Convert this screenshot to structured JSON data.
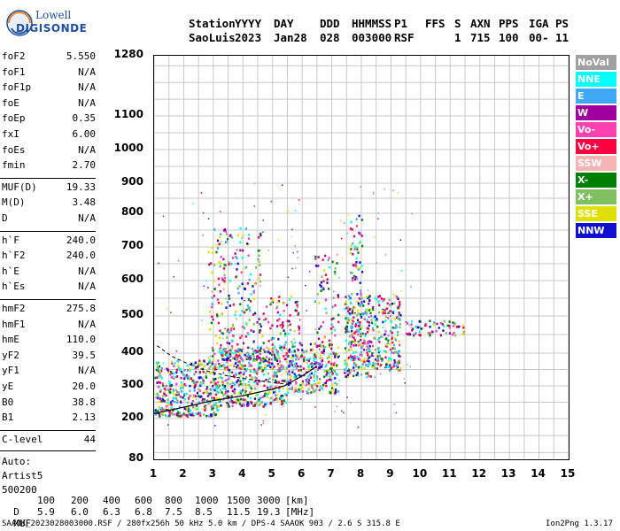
{
  "logo": {
    "line1": "Lowell",
    "line2": "DIGISONDE"
  },
  "header": {
    "labels": [
      "Station",
      "YYYY",
      "DAY",
      "DDD",
      "HHMMSS",
      "P1",
      "FFS",
      "S",
      "AXN",
      "PPS",
      "IGA",
      "PS"
    ],
    "values": [
      "SaoLuis",
      "2023",
      "Jan28",
      "028",
      "003000",
      "RSF",
      "",
      "1",
      "715",
      "100",
      "00-",
      "11"
    ]
  },
  "params": {
    "group1": [
      {
        "label": "foF2",
        "value": "5.550"
      },
      {
        "label": "foF1",
        "value": "N/A"
      },
      {
        "label": "foF1p",
        "value": "N/A"
      },
      {
        "label": "foE",
        "value": "N/A"
      },
      {
        "label": "foEp",
        "value": "0.35"
      },
      {
        "label": "fxI",
        "value": "6.00"
      },
      {
        "label": "foEs",
        "value": "N/A"
      },
      {
        "label": "fmin",
        "value": "2.70"
      }
    ],
    "group2": [
      {
        "label": "MUF(D)",
        "value": "19.33"
      },
      {
        "label": "M(D)",
        "value": "3.48"
      },
      {
        "label": "D",
        "value": "N/A"
      }
    ],
    "group3": [
      {
        "label": "h`F",
        "value": "240.0"
      },
      {
        "label": "h`F2",
        "value": "240.0"
      },
      {
        "label": "h`E",
        "value": "N/A"
      },
      {
        "label": "h`Es",
        "value": "N/A"
      }
    ],
    "group4": [
      {
        "label": "hmF2",
        "value": "275.8"
      },
      {
        "label": "hmF1",
        "value": "N/A"
      },
      {
        "label": "hmE",
        "value": "110.0"
      },
      {
        "label": "yF2",
        "value": "39.5"
      },
      {
        "label": "yF1",
        "value": "N/A"
      },
      {
        "label": "yE",
        "value": "20.0"
      },
      {
        "label": "B0",
        "value": "38.8"
      },
      {
        "label": "B1",
        "value": "2.13"
      }
    ],
    "group5": [
      {
        "label": "C-level",
        "value": "44"
      }
    ],
    "auto_label": "Auto:",
    "artist": "Artist5",
    "code": "500200"
  },
  "legend": [
    {
      "label": "NoVal",
      "color": "#a0a0a0"
    },
    {
      "label": "NNE",
      "color": "#00ffff"
    },
    {
      "label": "E",
      "color": "#3fa9f5"
    },
    {
      "label": "W",
      "color": "#a000a0"
    },
    {
      "label": "Vo-",
      "color": "#ff40b0"
    },
    {
      "label": "Vo+",
      "color": "#ff0040"
    },
    {
      "label": "SSW",
      "color": "#f4b4b4"
    },
    {
      "label": "X-",
      "color": "#008000"
    },
    {
      "label": "X+",
      "color": "#80c060"
    },
    {
      "label": "SSE",
      "color": "#e0e000"
    },
    {
      "label": "NNW",
      "color": "#1010d0"
    }
  ],
  "chart_data": {
    "type": "scatter",
    "xlabel": "",
    "ylabel": "",
    "xlim": [
      1,
      15
    ],
    "ylim": [
      80,
      1280
    ],
    "x_ticks": [
      "1",
      "2",
      "3",
      "4",
      "5",
      "6",
      "7",
      "8",
      "9",
      "10",
      "11",
      "12",
      "13",
      "14",
      "15"
    ],
    "y_ticks": [
      {
        "value": 1280,
        "label": "1280"
      },
      {
        "value": 1100,
        "label": "1100"
      },
      {
        "value": 1000,
        "label": "1000"
      },
      {
        "value": 900,
        "label": "900"
      },
      {
        "value": 800,
        "label": "800"
      },
      {
        "value": 700,
        "label": "700"
      },
      {
        "value": 600,
        "label": "600"
      },
      {
        "value": 500,
        "label": "500"
      },
      {
        "value": 400,
        "label": "400"
      },
      {
        "value": 300,
        "label": "300"
      },
      {
        "value": 200,
        "label": "200"
      },
      {
        "value": 80,
        "label": "80"
      }
    ],
    "grid": true,
    "trace_lower": [
      [
        1.0,
        215
      ],
      [
        2.0,
        235
      ],
      [
        3.0,
        255
      ],
      [
        4.0,
        270
      ],
      [
        5.0,
        290
      ],
      [
        5.4,
        300
      ],
      [
        6.0,
        330
      ],
      [
        6.5,
        360
      ]
    ],
    "trace_upper": [
      [
        1.1,
        420
      ],
      [
        1.6,
        390
      ],
      [
        2.2,
        365
      ],
      [
        2.8,
        345
      ],
      [
        3.5,
        330
      ],
      [
        4.2,
        320
      ],
      [
        5.0,
        310
      ],
      [
        5.5,
        305
      ]
    ],
    "clusters": [
      {
        "x": [
          1.0,
          3.2
        ],
        "y": [
          210,
          380
        ],
        "n": 420
      },
      {
        "x": [
          3.2,
          5.5
        ],
        "y": [
          240,
          420
        ],
        "n": 420
      },
      {
        "x": [
          5.5,
          7.2
        ],
        "y": [
          280,
          430
        ],
        "n": 260
      },
      {
        "x": [
          2.8,
          4.6
        ],
        "y": [
          380,
          760
        ],
        "n": 260
      },
      {
        "x": [
          4.6,
          5.9
        ],
        "y": [
          360,
          560
        ],
        "n": 110
      },
      {
        "x": [
          6.4,
          7.2
        ],
        "y": [
          420,
          680
        ],
        "n": 70
      },
      {
        "x": [
          7.4,
          8.3
        ],
        "y": [
          330,
          560
        ],
        "n": 260
      },
      {
        "x": [
          8.3,
          9.3
        ],
        "y": [
          350,
          560
        ],
        "n": 200
      },
      {
        "x": [
          7.6,
          8.0
        ],
        "y": [
          560,
          800
        ],
        "n": 50
      },
      {
        "x": [
          9.5,
          11.5
        ],
        "y": [
          450,
          490
        ],
        "n": 70
      },
      {
        "x": [
          1.0,
          9.7
        ],
        "y": [
          160,
          900
        ],
        "n": 160
      }
    ]
  },
  "footer": {
    "d_label": "D",
    "d_values": [
      "100",
      "200",
      "400",
      "600",
      "800",
      "1000",
      "1500",
      "3000",
      "[km]"
    ],
    "muf_label": "MUF",
    "muf_values": [
      "5.9",
      "6.0",
      "6.3",
      "6.8",
      "7.5",
      "8.5",
      "11.5",
      "19.3",
      "[MHz]"
    ],
    "file_info": "SAAOK_2023028003000.RSF / 280fx256h 50 kHz 5.0 km / DPS-4 SAAOK 903 / 2.6 S 315.8 E",
    "version": "Ion2Png 1.3.17"
  }
}
